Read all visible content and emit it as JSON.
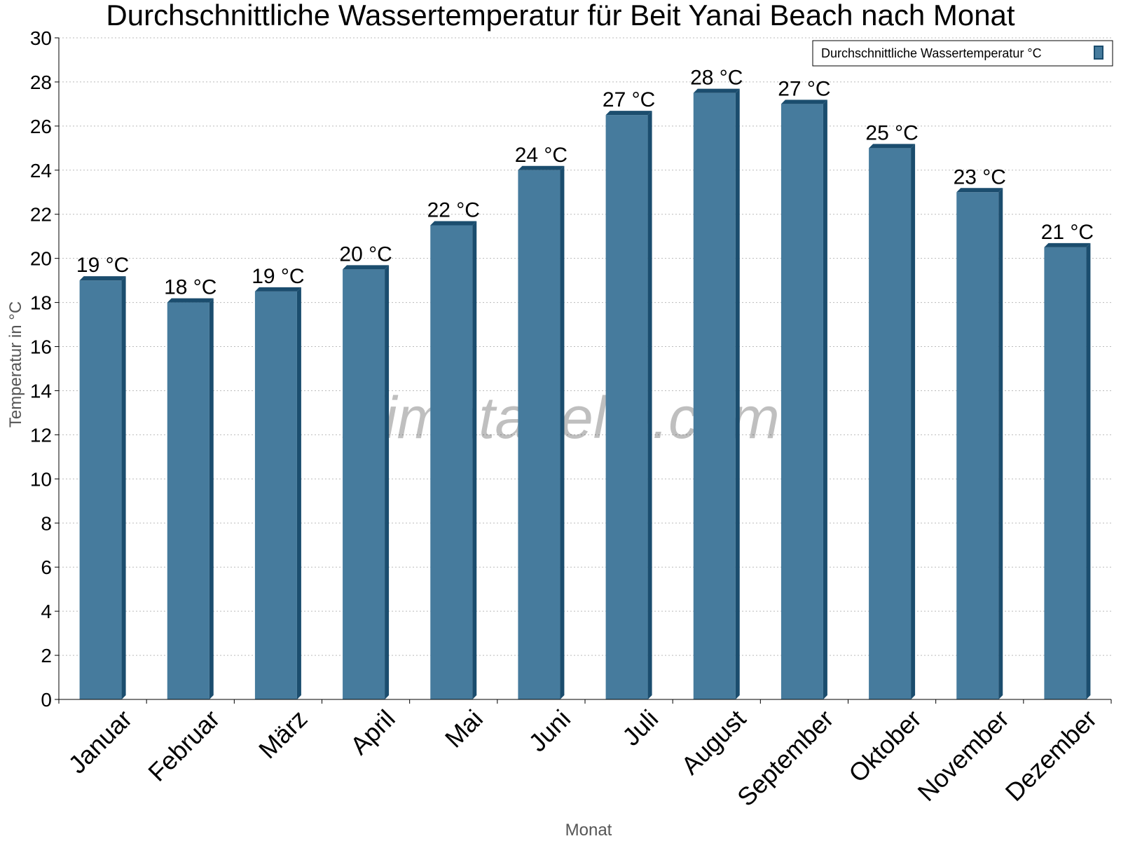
{
  "chart_data": {
    "type": "bar",
    "title": "Durchschnittliche Wassertemperatur für Beit Yanai Beach nach Monat",
    "xlabel": "Monat",
    "ylabel": "Temperatur in °C",
    "ylim": [
      0,
      30
    ],
    "yticks": [
      0,
      2,
      4,
      6,
      8,
      10,
      12,
      14,
      16,
      18,
      20,
      22,
      24,
      26,
      28,
      30
    ],
    "grid": true,
    "legend_position": "top-right",
    "categories": [
      "Januar",
      "Februar",
      "März",
      "April",
      "Mai",
      "Juni",
      "Juli",
      "August",
      "September",
      "Oktober",
      "November",
      "Dezember"
    ],
    "series": [
      {
        "name": "Durchschnittliche Wassertemperatur °C",
        "values": [
          19,
          18,
          18.5,
          19.5,
          21.5,
          24,
          26.5,
          27.5,
          27,
          25,
          23,
          20.5
        ],
        "labels": [
          "19 °C",
          "18 °C",
          "19 °C",
          "20 °C",
          "22 °C",
          "24 °C",
          "27 °C",
          "28 °C",
          "27 °C",
          "25 °C",
          "23 °C",
          "21 °C"
        ],
        "color": "#467b9d",
        "edge_color": "#1b4d6e"
      }
    ],
    "watermark": "klimatabelle.com"
  }
}
